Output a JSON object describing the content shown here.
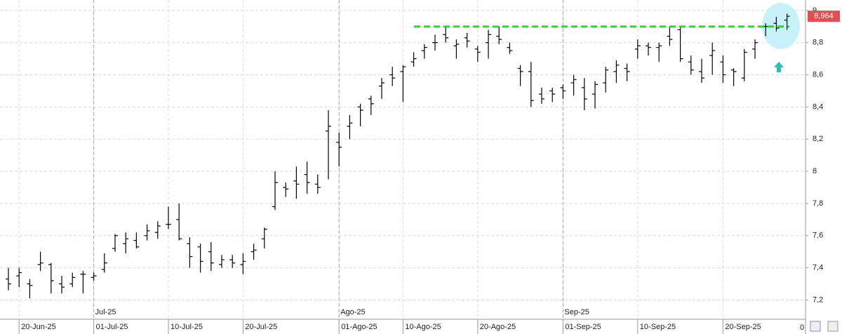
{
  "chart_data": {
    "type": "ohlc",
    "categories": [
      null,
      "20-Jun-25",
      null,
      null,
      null,
      null,
      null,
      null,
      "01-Jul-25",
      null,
      null,
      null,
      null,
      null,
      null,
      "10-Jul-25",
      null,
      null,
      null,
      null,
      null,
      null,
      "20-Jul-25",
      null,
      null,
      null,
      null,
      null,
      null,
      null,
      null,
      "01-Ago-25",
      null,
      null,
      null,
      null,
      null,
      "10-Ago-25",
      null,
      null,
      null,
      null,
      null,
      null,
      "20-Ago-25",
      null,
      null,
      null,
      null,
      null,
      null,
      null,
      "01-Sep-25",
      null,
      null,
      null,
      null,
      null,
      null,
      "10-Sep-25",
      null,
      null,
      null,
      null,
      null,
      null,
      null,
      "20-Sep-25",
      null,
      null,
      null,
      null,
      null,
      null
    ],
    "month_labels": [
      {
        "index": 8,
        "label": "Jul-25"
      },
      {
        "index": 31,
        "label": "Ago-25"
      },
      {
        "index": 52,
        "label": "Sep-25"
      }
    ],
    "open": [
      7.33,
      7.35,
      7.3,
      7.42,
      7.42,
      7.3,
      7.3,
      7.36,
      7.34,
      7.39,
      7.52,
      7.55,
      7.57,
      7.6,
      7.62,
      7.67,
      7.7,
      7.55,
      7.53,
      7.5,
      7.42,
      7.45,
      7.42,
      7.5,
      7.58,
      7.78,
      7.9,
      7.94,
      7.98,
      7.92,
      8.25,
      8.18,
      8.28,
      8.4,
      8.45,
      8.53,
      8.6,
      8.62,
      8.68,
      8.75,
      8.8,
      8.85,
      8.78,
      8.83,
      8.76,
      8.8,
      8.84,
      8.77,
      8.64,
      8.62,
      8.48,
      8.5,
      8.52,
      8.55,
      8.52,
      8.48,
      8.55,
      8.62,
      8.64,
      8.76,
      8.78,
      8.77,
      8.84,
      8.88,
      8.68,
      8.62,
      8.72,
      8.68,
      8.63,
      8.58,
      8.76,
      8.9,
      8.92,
      8.94
    ],
    "high": [
      7.4,
      7.4,
      7.33,
      7.5,
      7.43,
      7.35,
      7.37,
      7.38,
      7.37,
      7.49,
      7.61,
      7.62,
      7.62,
      7.67,
      7.69,
      7.78,
      7.8,
      7.59,
      7.55,
      7.56,
      7.48,
      7.48,
      7.49,
      7.55,
      7.65,
      8.0,
      7.93,
      8.03,
      8.06,
      7.98,
      8.38,
      8.24,
      8.35,
      8.42,
      8.47,
      8.58,
      8.65,
      8.66,
      8.74,
      8.79,
      8.85,
      8.9,
      8.82,
      8.86,
      8.78,
      8.88,
      8.9,
      8.8,
      8.66,
      8.68,
      8.52,
      8.52,
      8.54,
      8.6,
      8.58,
      8.56,
      8.65,
      8.69,
      8.67,
      8.82,
      8.8,
      8.8,
      8.9,
      8.9,
      8.72,
      8.7,
      8.8,
      8.72,
      8.64,
      8.76,
      8.82,
      8.92,
      8.96,
      8.98
    ],
    "low": [
      7.26,
      7.28,
      7.21,
      7.38,
      7.24,
      7.24,
      7.28,
      7.24,
      7.32,
      7.37,
      7.5,
      7.49,
      7.52,
      7.57,
      7.58,
      7.64,
      7.57,
      7.4,
      7.37,
      7.38,
      7.4,
      7.4,
      7.36,
      7.45,
      7.52,
      7.76,
      7.84,
      7.83,
      7.86,
      7.86,
      7.95,
      8.03,
      8.2,
      8.28,
      8.35,
      8.45,
      8.53,
      8.43,
      8.65,
      8.7,
      8.75,
      8.8,
      8.7,
      8.77,
      8.68,
      8.7,
      8.79,
      8.73,
      8.53,
      8.4,
      8.42,
      8.43,
      8.45,
      8.47,
      8.38,
      8.39,
      8.49,
      8.55,
      8.56,
      8.7,
      8.72,
      8.68,
      8.78,
      8.68,
      8.6,
      8.55,
      8.6,
      8.55,
      8.53,
      8.56,
      8.7,
      8.84,
      8.87,
      8.88
    ],
    "close": [
      7.3,
      7.37,
      7.29,
      7.43,
      7.32,
      7.28,
      7.34,
      7.36,
      7.35,
      7.43,
      7.6,
      7.58,
      7.53,
      7.63,
      7.66,
      7.67,
      7.58,
      7.47,
      7.44,
      7.43,
      7.45,
      7.43,
      7.44,
      7.51,
      7.64,
      7.93,
      7.89,
      7.92,
      7.93,
      7.9,
      8.28,
      8.15,
      8.3,
      8.38,
      8.42,
      8.55,
      8.58,
      8.65,
      8.7,
      8.77,
      8.8,
      8.83,
      8.79,
      8.81,
      8.74,
      8.85,
      8.82,
      8.75,
      8.62,
      8.44,
      8.45,
      8.48,
      8.5,
      8.57,
      8.45,
      8.54,
      8.63,
      8.66,
      8.62,
      8.78,
      8.77,
      8.78,
      8.82,
      8.7,
      8.63,
      8.58,
      8.75,
      8.6,
      8.62,
      8.74,
      8.8,
      8.9,
      8.89,
      8.964
    ],
    "color": "#000000",
    "ylim": [
      7.08,
      9.065
    ],
    "yticks": [
      {
        "value": 7.2,
        "label": "7,2"
      },
      {
        "value": 7.4,
        "label": "7,4"
      },
      {
        "value": 7.6,
        "label": "7,6"
      },
      {
        "value": 7.8,
        "label": "7,8"
      },
      8,
      {
        "value": 8.2,
        "label": "8,2"
      },
      {
        "value": 8.4,
        "label": "8,4"
      },
      {
        "value": 8.6,
        "label": "8,6"
      },
      {
        "value": 8.8,
        "label": "8,8"
      },
      9
    ],
    "resistance": {
      "value": 8.9,
      "color": "#22dd22"
    },
    "last_price": {
      "value": 8.964,
      "label": "8,964",
      "color": "#e05050"
    },
    "corner_label": "0",
    "grid": true
  }
}
